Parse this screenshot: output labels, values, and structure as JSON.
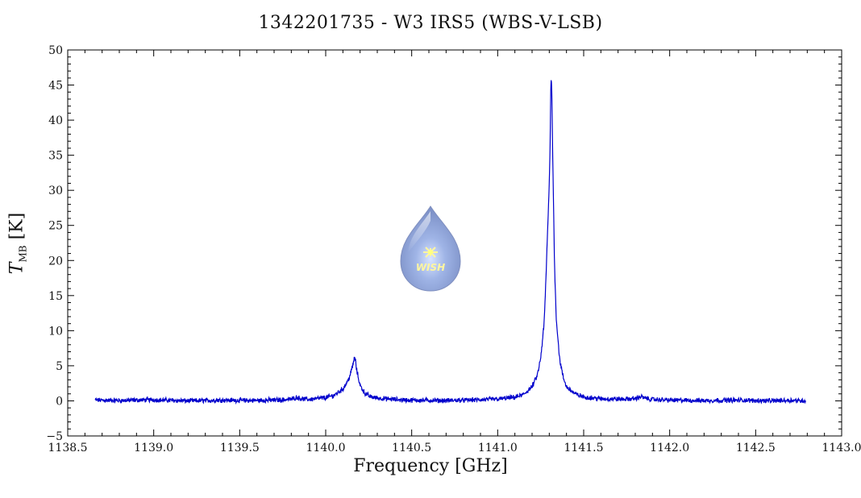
{
  "chart_data": {
    "type": "line",
    "title": "1342201735 - W3 IRS5 (WBS-V-LSB)",
    "xlabel": "Frequency [GHz]",
    "ylabel": {
      "symbol": "T",
      "subscript": "MB",
      "unit": "[K]"
    },
    "xlim": [
      1138.5,
      1143.0
    ],
    "ylim": [
      -5,
      50
    ],
    "xticks": [
      "1138.5",
      "1139.0",
      "1139.5",
      "1140.0",
      "1140.5",
      "1141.0",
      "1141.5",
      "1142.0",
      "1142.5",
      "1143.0"
    ],
    "yticks": [
      "−5",
      "0",
      "5",
      "10",
      "15",
      "20",
      "25",
      "30",
      "35",
      "40",
      "45",
      "50"
    ],
    "series": [
      {
        "color": "#0000cc",
        "x": [
          1138.66,
          1138.8,
          1139.0,
          1139.2,
          1139.4,
          1139.6,
          1139.75,
          1139.8,
          1139.83,
          1139.86,
          1139.9,
          1140.0,
          1140.05,
          1140.1,
          1140.13,
          1140.15,
          1140.165,
          1140.17,
          1140.18,
          1140.2,
          1140.23,
          1140.26,
          1140.3,
          1140.4,
          1140.5,
          1140.7,
          1140.9,
          1141.0,
          1141.1,
          1141.15,
          1141.2,
          1141.23,
          1141.25,
          1141.27,
          1141.28,
          1141.29,
          1141.3,
          1141.305,
          1141.31,
          1141.315,
          1141.32,
          1141.33,
          1141.34,
          1141.36,
          1141.38,
          1141.4,
          1141.45,
          1141.5,
          1141.6,
          1141.75,
          1141.8,
          1141.83,
          1141.86,
          1141.9,
          1142.0,
          1142.2,
          1142.4,
          1142.6,
          1142.7,
          1142.79
        ],
        "y": [
          0.1,
          0.05,
          0.15,
          0.0,
          0.1,
          0.05,
          0.15,
          0.25,
          0.5,
          0.3,
          0.2,
          0.45,
          0.8,
          1.7,
          2.9,
          4.3,
          5.9,
          6.2,
          4.4,
          2.2,
          1.0,
          0.6,
          0.4,
          0.2,
          0.1,
          0.05,
          0.15,
          0.25,
          0.5,
          0.9,
          2.0,
          3.6,
          6.0,
          11.0,
          17.0,
          24.0,
          31.0,
          37.0,
          46.5,
          44.0,
          35.0,
          20.0,
          12.0,
          6.0,
          3.4,
          2.0,
          1.0,
          0.55,
          0.3,
          0.25,
          0.35,
          0.6,
          0.35,
          0.2,
          0.1,
          0.05,
          0.1,
          0.0,
          0.1,
          0.0
        ]
      }
    ],
    "grid": false
  },
  "logo": {
    "text": "WISH"
  }
}
